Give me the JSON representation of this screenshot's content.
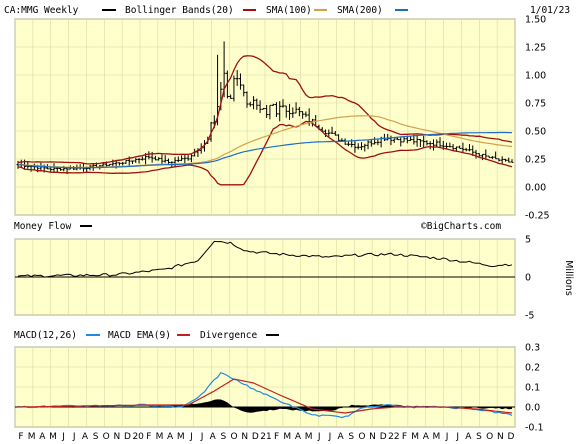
{
  "header": {
    "symbol_label": "CA:MMG Weekly",
    "bb_label": "Bollinger Bands(20)",
    "sma100_label": "SMA(100)",
    "sma200_label": "SMA(200)",
    "date": "1/01/23",
    "watermark": "©BigCharts.com"
  },
  "colors": {
    "panel_bg": "#FFFFCC",
    "grid": "#D8D8A0",
    "price": "#000000",
    "bollinger": "#A01010",
    "sma100": "#D4A04A",
    "sma200": "#1E6CC8",
    "macd": "#1E8CE6",
    "macd_ema": "#C02020",
    "divergence": "#000000"
  },
  "chart_data": [
    {
      "type": "ohlc",
      "panel": "price",
      "y_ticks": [
        "1.50",
        "1.25",
        "1.00",
        "0.75",
        "0.50",
        "0.25",
        "0.00",
        "-0.25"
      ],
      "ylim": [
        -0.25,
        1.5
      ],
      "x_labels": [
        "F",
        "M",
        "A",
        "M",
        "J",
        "J",
        "A",
        "S",
        "O",
        "N",
        "D",
        "20",
        "F",
        "M",
        "A",
        "M",
        "J",
        "J",
        "A",
        "S",
        "O",
        "N",
        "D",
        "21",
        "F",
        "M",
        "A",
        "M",
        "J",
        "J",
        "A",
        "S",
        "O",
        "N",
        "D",
        "22",
        "F",
        "M",
        "A",
        "M",
        "J",
        "J",
        "A",
        "S",
        "O",
        "N",
        "D"
      ],
      "series_shape": {
        "close_key_points": [
          [
            0,
            0.2
          ],
          [
            10,
            0.16
          ],
          [
            20,
            0.17
          ],
          [
            32,
            0.22
          ],
          [
            40,
            0.27
          ],
          [
            46,
            0.22
          ],
          [
            52,
            0.26
          ],
          [
            58,
            0.42
          ],
          [
            60,
            0.6
          ],
          [
            62,
            0.85
          ],
          [
            63,
            1.05
          ],
          [
            64,
            0.8
          ],
          [
            66,
            0.9
          ],
          [
            70,
            0.8
          ],
          [
            75,
            0.7
          ],
          [
            80,
            0.7
          ],
          [
            85,
            0.68
          ],
          [
            90,
            0.58
          ],
          [
            95,
            0.48
          ],
          [
            100,
            0.4
          ],
          [
            104,
            0.36
          ],
          [
            108,
            0.4
          ],
          [
            112,
            0.44
          ],
          [
            118,
            0.42
          ],
          [
            124,
            0.4
          ],
          [
            130,
            0.38
          ],
          [
            136,
            0.34
          ],
          [
            142,
            0.28
          ],
          [
            147,
            0.24
          ],
          [
            151,
            0.22
          ]
        ],
        "high_peak": 1.3
      },
      "series": [
        {
          "name": "Bollinger Bands(20)",
          "color": "#A01010"
        },
        {
          "name": "SMA(100)",
          "color": "#D4A04A"
        },
        {
          "name": "SMA(200)",
          "color": "#1E6CC8"
        }
      ]
    },
    {
      "type": "line",
      "panel": "money_flow",
      "title": "Money Flow",
      "y_ticks": [
        "5",
        "0",
        "-5"
      ],
      "ylim": [
        -5,
        5
      ],
      "ylabel": "Millions",
      "key_points": [
        [
          0,
          0.1
        ],
        [
          30,
          0.3
        ],
        [
          45,
          1.0
        ],
        [
          55,
          2.2
        ],
        [
          60,
          4.8
        ],
        [
          65,
          4.5
        ],
        [
          70,
          3.4
        ],
        [
          80,
          3.0
        ],
        [
          95,
          2.6
        ],
        [
          105,
          2.9
        ],
        [
          115,
          3.0
        ],
        [
          130,
          2.4
        ],
        [
          145,
          1.5
        ],
        [
          151,
          1.7
        ]
      ]
    },
    {
      "type": "line",
      "panel": "macd",
      "title": "MACD(12,26)",
      "ema_label": "MACD EMA(9)",
      "div_label": "Divergence",
      "y_ticks": [
        "0.3",
        "0.2",
        "0.1",
        "0.0",
        "-0.1"
      ],
      "ylim": [
        -0.1,
        0.3
      ],
      "macd_points": [
        [
          0,
          0.0
        ],
        [
          40,
          0.01
        ],
        [
          50,
          0.0
        ],
        [
          56,
          0.06
        ],
        [
          62,
          0.17
        ],
        [
          66,
          0.14
        ],
        [
          72,
          0.09
        ],
        [
          80,
          0.03
        ],
        [
          90,
          -0.04
        ],
        [
          100,
          -0.05
        ],
        [
          106,
          0.0
        ],
        [
          112,
          0.01
        ],
        [
          120,
          0.0
        ],
        [
          130,
          0.0
        ],
        [
          140,
          -0.01
        ],
        [
          151,
          -0.04
        ]
      ],
      "ema_points": [
        [
          0,
          0.0
        ],
        [
          40,
          0.01
        ],
        [
          52,
          0.01
        ],
        [
          60,
          0.08
        ],
        [
          66,
          0.14
        ],
        [
          72,
          0.12
        ],
        [
          80,
          0.06
        ],
        [
          90,
          -0.01
        ],
        [
          100,
          -0.03
        ],
        [
          108,
          -0.01
        ],
        [
          115,
          0.0
        ],
        [
          130,
          0.0
        ],
        [
          140,
          -0.01
        ],
        [
          151,
          -0.03
        ]
      ],
      "divergence_points": [
        [
          0,
          0.0
        ],
        [
          40,
          0.0
        ],
        [
          56,
          0.02
        ],
        [
          62,
          0.04
        ],
        [
          66,
          0.0
        ],
        [
          70,
          -0.03
        ],
        [
          80,
          -0.01
        ],
        [
          88,
          -0.02
        ],
        [
          96,
          -0.02
        ],
        [
          102,
          0.01
        ],
        [
          112,
          0.01
        ],
        [
          130,
          0.0
        ],
        [
          151,
          -0.01
        ]
      ]
    }
  ]
}
